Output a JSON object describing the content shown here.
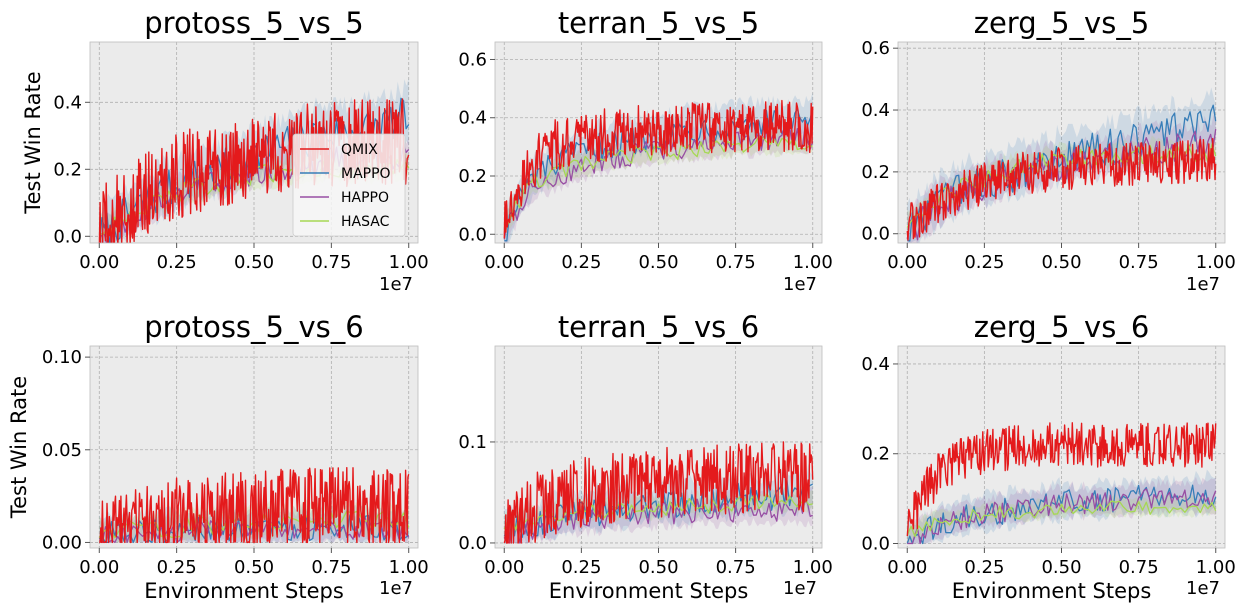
{
  "figure": {
    "offset_label": "1e7",
    "x_axis_label": "Environment Steps",
    "y_axis_label": "Test Win Rate"
  },
  "legend": {
    "placement": "center-right of first panel",
    "entries": [
      "QMIX",
      "MAPPO",
      "HAPPO",
      "HASAC"
    ]
  },
  "colors": {
    "QMIX": "#e41a1c",
    "MAPPO": "#377eb8",
    "HAPPO": "#984ea3",
    "HASAC": "#a6d854",
    "axes_bg": "#ebebeb",
    "grid": "#b0b0b0"
  },
  "chart_data": [
    {
      "type": "line",
      "title": "protoss_5_vs_5",
      "xlabel": "",
      "ylabel": "Test Win Rate",
      "xlim": [
        0,
        10000000
      ],
      "ylim": [
        -0.02,
        0.58
      ],
      "xticks": [
        "0.00",
        "0.25",
        "0.50",
        "0.75",
        "1.00"
      ],
      "yticks": [
        0.0,
        0.2,
        0.4
      ],
      "ytick_labels": [
        "0.0",
        "0.2",
        "0.4"
      ],
      "grid": true,
      "series": [
        {
          "name": "QMIX",
          "final": 0.28,
          "spikiness": 0.13,
          "noise_steps": 400,
          "x": [
            0,
            0.05,
            0.15,
            0.25,
            0.4,
            0.55,
            0.7,
            0.85,
            1.0
          ],
          "y": [
            0.02,
            0.05,
            0.12,
            0.18,
            0.22,
            0.25,
            0.27,
            0.28,
            0.28
          ]
        },
        {
          "name": "MAPPO",
          "spikiness": 0.06,
          "noise_steps": 120,
          "x": [
            0,
            0.1,
            0.2,
            0.3,
            0.4,
            0.5,
            0.6,
            0.7,
            0.8,
            0.9,
            1.0
          ],
          "y": [
            0.0,
            0.07,
            0.13,
            0.17,
            0.2,
            0.24,
            0.27,
            0.3,
            0.31,
            0.33,
            0.36
          ]
        },
        {
          "name": "HAPPO",
          "spikiness": 0.04,
          "noise_steps": 120,
          "x": [
            0,
            0.1,
            0.2,
            0.3,
            0.4,
            0.5,
            0.6,
            0.7,
            0.8,
            0.9,
            1.0
          ],
          "y": [
            0.0,
            0.05,
            0.11,
            0.15,
            0.17,
            0.19,
            0.21,
            0.22,
            0.23,
            0.24,
            0.24
          ]
        },
        {
          "name": "HASAC",
          "spikiness": 0.03,
          "noise_steps": 80,
          "x": [
            0,
            0.1,
            0.2,
            0.3,
            0.4,
            0.5,
            0.6,
            0.7,
            0.8,
            0.9,
            1.0
          ],
          "y": [
            0.02,
            0.07,
            0.11,
            0.14,
            0.16,
            0.18,
            0.19,
            0.2,
            0.2,
            0.2,
            0.21
          ]
        }
      ]
    },
    {
      "type": "line",
      "title": "terran_5_vs_5",
      "xlabel": "",
      "ylabel": "",
      "xlim": [
        0,
        10000000
      ],
      "ylim": [
        -0.03,
        0.66
      ],
      "xticks": [
        "0.00",
        "0.25",
        "0.50",
        "0.75",
        "1.00"
      ],
      "yticks": [
        0.0,
        0.2,
        0.4,
        0.6
      ],
      "ytick_labels": [
        "0.0",
        "0.2",
        "0.4",
        "0.6"
      ],
      "grid": true,
      "series": [
        {
          "name": "QMIX",
          "spikiness": 0.09,
          "noise_steps": 400,
          "x": [
            0,
            0.03,
            0.08,
            0.15,
            0.25,
            0.4,
            0.55,
            0.7,
            0.85,
            1.0
          ],
          "y": [
            0.02,
            0.12,
            0.22,
            0.3,
            0.33,
            0.35,
            0.36,
            0.37,
            0.37,
            0.37
          ]
        },
        {
          "name": "MAPPO",
          "spikiness": 0.05,
          "noise_steps": 120,
          "x": [
            0,
            0.05,
            0.1,
            0.2,
            0.3,
            0.4,
            0.5,
            0.6,
            0.7,
            0.8,
            0.9,
            1.0
          ],
          "y": [
            0.0,
            0.12,
            0.2,
            0.26,
            0.3,
            0.32,
            0.34,
            0.36,
            0.37,
            0.38,
            0.38,
            0.39
          ]
        },
        {
          "name": "HAPPO",
          "spikiness": 0.04,
          "noise_steps": 120,
          "x": [
            0,
            0.05,
            0.1,
            0.2,
            0.3,
            0.4,
            0.5,
            0.6,
            0.7,
            0.8,
            0.9,
            1.0
          ],
          "y": [
            0.0,
            0.1,
            0.17,
            0.21,
            0.25,
            0.27,
            0.29,
            0.3,
            0.31,
            0.32,
            0.33,
            0.33
          ]
        },
        {
          "name": "HASAC",
          "spikiness": 0.03,
          "noise_steps": 80,
          "x": [
            0,
            0.05,
            0.1,
            0.2,
            0.3,
            0.4,
            0.5,
            0.6,
            0.7,
            0.8,
            0.9,
            1.0
          ],
          "y": [
            0.02,
            0.12,
            0.18,
            0.22,
            0.25,
            0.27,
            0.28,
            0.29,
            0.3,
            0.31,
            0.31,
            0.31
          ]
        }
      ]
    },
    {
      "type": "line",
      "title": "zerg_5_vs_5",
      "xlabel": "",
      "ylabel": "",
      "xlim": [
        0,
        10000000
      ],
      "ylim": [
        -0.03,
        0.62
      ],
      "xticks": [
        "0.00",
        "0.25",
        "0.50",
        "0.75",
        "1.00"
      ],
      "yticks": [
        0.0,
        0.2,
        0.4,
        0.6
      ],
      "ytick_labels": [
        "0.0",
        "0.2",
        "0.4",
        "0.6"
      ],
      "grid": true,
      "series": [
        {
          "name": "QMIX",
          "spikiness": 0.07,
          "noise_steps": 400,
          "x": [
            0,
            0.05,
            0.1,
            0.2,
            0.3,
            0.4,
            0.5,
            0.6,
            0.7,
            0.8,
            0.9,
            1.0
          ],
          "y": [
            0.03,
            0.06,
            0.1,
            0.15,
            0.18,
            0.2,
            0.21,
            0.22,
            0.22,
            0.23,
            0.23,
            0.24
          ]
        },
        {
          "name": "MAPPO",
          "spikiness": 0.06,
          "noise_steps": 120,
          "x": [
            0,
            0.1,
            0.2,
            0.3,
            0.4,
            0.5,
            0.6,
            0.7,
            0.8,
            0.9,
            1.0
          ],
          "y": [
            0.0,
            0.1,
            0.15,
            0.18,
            0.21,
            0.24,
            0.27,
            0.29,
            0.31,
            0.35,
            0.36
          ]
        },
        {
          "name": "HAPPO",
          "spikiness": 0.05,
          "noise_steps": 120,
          "x": [
            0,
            0.1,
            0.2,
            0.3,
            0.4,
            0.5,
            0.6,
            0.7,
            0.8,
            0.9,
            1.0
          ],
          "y": [
            0.0,
            0.09,
            0.14,
            0.17,
            0.2,
            0.22,
            0.24,
            0.25,
            0.27,
            0.28,
            0.29
          ]
        },
        {
          "name": "HASAC",
          "spikiness": 0.03,
          "noise_steps": 80,
          "x": [
            0,
            0.1,
            0.2,
            0.3,
            0.4,
            0.5,
            0.6,
            0.7,
            0.8,
            0.9,
            1.0
          ],
          "y": [
            0.03,
            0.11,
            0.16,
            0.2,
            0.22,
            0.24,
            0.25,
            0.25,
            0.26,
            0.26,
            0.26
          ]
        }
      ]
    },
    {
      "type": "line",
      "title": "protoss_5_vs_6",
      "xlabel": "Environment Steps",
      "ylabel": "Test Win Rate",
      "xlim": [
        0,
        10000000
      ],
      "ylim": [
        -0.003,
        0.106
      ],
      "xticks": [
        "0.00",
        "0.25",
        "0.50",
        "0.75",
        "1.00"
      ],
      "yticks": [
        0.0,
        0.05,
        0.1
      ],
      "ytick_labels": [
        "0.00",
        "0.05",
        "0.10"
      ],
      "grid": true,
      "series": [
        {
          "name": "QMIX",
          "spikiness": 0.022,
          "noise_steps": 400,
          "clip_zero": true,
          "x": [
            0,
            0.1,
            0.2,
            0.4,
            0.6,
            0.8,
            1.0
          ],
          "y": [
            0.001,
            0.006,
            0.012,
            0.016,
            0.018,
            0.019,
            0.018
          ]
        },
        {
          "name": "MAPPO",
          "spikiness": 0.007,
          "noise_steps": 100,
          "clip_zero": true,
          "x": [
            0,
            0.2,
            0.4,
            0.6,
            0.8,
            1.0
          ],
          "y": [
            0.004,
            0.006,
            0.007,
            0.008,
            0.008,
            0.008
          ]
        },
        {
          "name": "HAPPO",
          "spikiness": 0.006,
          "noise_steps": 100,
          "clip_zero": true,
          "x": [
            0,
            0.2,
            0.4,
            0.6,
            0.8,
            1.0
          ],
          "y": [
            0.003,
            0.005,
            0.006,
            0.007,
            0.007,
            0.007
          ]
        },
        {
          "name": "HASAC",
          "spikiness": 0.006,
          "noise_steps": 60,
          "clip_zero": true,
          "x": [
            0,
            0.2,
            0.4,
            0.6,
            0.8,
            1.0
          ],
          "y": [
            0.004,
            0.008,
            0.01,
            0.011,
            0.012,
            0.011
          ]
        }
      ]
    },
    {
      "type": "line",
      "title": "terran_5_vs_6",
      "xlabel": "Environment Steps",
      "ylabel": "",
      "xlim": [
        0,
        10000000
      ],
      "ylim": [
        -0.005,
        0.195
      ],
      "xticks": [
        "0.00",
        "0.25",
        "0.50",
        "0.75",
        "1.00"
      ],
      "yticks": [
        0.0,
        0.1
      ],
      "ytick_labels": [
        "0.0",
        "0.1"
      ],
      "grid": true,
      "series": [
        {
          "name": "QMIX",
          "spikiness": 0.035,
          "noise_steps": 400,
          "clip_zero": true,
          "x": [
            0,
            0.05,
            0.1,
            0.2,
            0.35,
            0.5,
            0.7,
            0.85,
            1.0
          ],
          "y": [
            0.005,
            0.02,
            0.035,
            0.048,
            0.055,
            0.06,
            0.063,
            0.065,
            0.066
          ]
        },
        {
          "name": "MAPPO",
          "spikiness": 0.015,
          "noise_steps": 120,
          "clip_zero": true,
          "x": [
            0,
            0.2,
            0.4,
            0.6,
            0.8,
            1.0
          ],
          "y": [
            0.01,
            0.028,
            0.035,
            0.04,
            0.045,
            0.05
          ]
        },
        {
          "name": "HAPPO",
          "spikiness": 0.012,
          "noise_steps": 120,
          "clip_zero": true,
          "x": [
            0,
            0.2,
            0.4,
            0.6,
            0.8,
            1.0
          ],
          "y": [
            0.008,
            0.022,
            0.028,
            0.031,
            0.033,
            0.034
          ]
        },
        {
          "name": "HASAC",
          "spikiness": 0.008,
          "noise_steps": 80,
          "clip_zero": true,
          "x": [
            0,
            0.05,
            0.2,
            0.4,
            0.6,
            0.8,
            1.0
          ],
          "y": [
            0.015,
            0.022,
            0.03,
            0.033,
            0.036,
            0.04,
            0.042
          ]
        }
      ]
    },
    {
      "type": "line",
      "title": "zerg_5_vs_6",
      "xlabel": "Environment Steps",
      "ylabel": "",
      "xlim": [
        0,
        10000000
      ],
      "ylim": [
        -0.01,
        0.44
      ],
      "xticks": [
        "0.00",
        "0.25",
        "0.50",
        "0.75",
        "1.00"
      ],
      "yticks": [
        0.0,
        0.2,
        0.4
      ],
      "ytick_labels": [
        "0.0",
        "0.2",
        "0.4"
      ],
      "grid": true,
      "series": [
        {
          "name": "QMIX",
          "spikiness": 0.05,
          "noise_steps": 400,
          "x": [
            0,
            0.02,
            0.05,
            0.1,
            0.15,
            0.2,
            0.3,
            0.4,
            0.5,
            0.6,
            0.7,
            0.8,
            0.9,
            1.0
          ],
          "y": [
            0.02,
            0.06,
            0.11,
            0.15,
            0.18,
            0.2,
            0.21,
            0.22,
            0.22,
            0.22,
            0.22,
            0.22,
            0.22,
            0.22
          ]
        },
        {
          "name": "MAPPO",
          "spikiness": 0.03,
          "noise_steps": 120,
          "clip_zero": true,
          "x": [
            0,
            0.1,
            0.2,
            0.3,
            0.4,
            0.5,
            0.6,
            0.7,
            0.8,
            0.9,
            1.0
          ],
          "y": [
            0.0,
            0.04,
            0.06,
            0.07,
            0.08,
            0.09,
            0.09,
            0.1,
            0.1,
            0.1,
            0.11
          ]
        },
        {
          "name": "HAPPO",
          "spikiness": 0.025,
          "noise_steps": 120,
          "clip_zero": true,
          "x": [
            0,
            0.1,
            0.2,
            0.3,
            0.4,
            0.5,
            0.6,
            0.7,
            0.8,
            0.9,
            1.0
          ],
          "y": [
            0.0,
            0.04,
            0.06,
            0.07,
            0.08,
            0.09,
            0.09,
            0.09,
            0.1,
            0.1,
            0.1
          ]
        },
        {
          "name": "HASAC",
          "spikiness": 0.015,
          "noise_steps": 80,
          "x": [
            0,
            0.1,
            0.2,
            0.3,
            0.4,
            0.5,
            0.6,
            0.7,
            0.8,
            0.9,
            1.0
          ],
          "y": [
            0.02,
            0.05,
            0.06,
            0.07,
            0.07,
            0.08,
            0.08,
            0.08,
            0.08,
            0.08,
            0.08
          ]
        }
      ]
    }
  ]
}
